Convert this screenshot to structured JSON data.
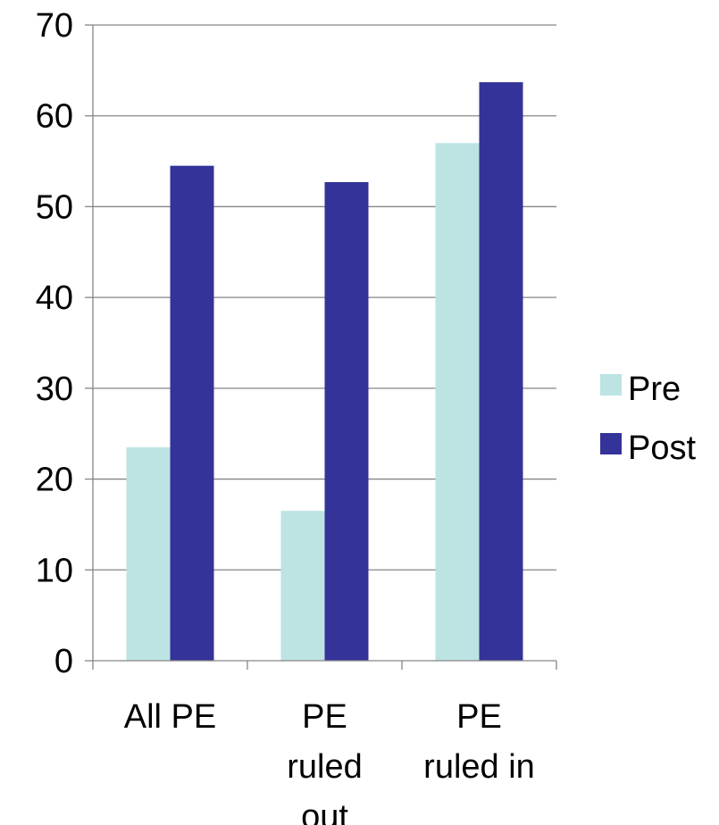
{
  "chart_data": {
    "type": "bar",
    "categories": [
      [
        "All PE"
      ],
      [
        "PE",
        "ruled",
        "out"
      ],
      [
        "PE",
        "ruled in"
      ]
    ],
    "series": [
      {
        "name": "Pre",
        "values": [
          23.5,
          16.5,
          57.0
        ],
        "color": "#bde3e3"
      },
      {
        "name": "Post",
        "values": [
          54.5,
          52.7,
          63.7
        ],
        "color": "#333399"
      }
    ],
    "ylim": [
      0,
      70
    ],
    "yticks": [
      0,
      10,
      20,
      30,
      40,
      50,
      60,
      70
    ],
    "title": "",
    "xlabel": "",
    "ylabel": "",
    "grid": true,
    "legend_position": "right",
    "axis_color": "#868686",
    "grid_color": "#868686"
  }
}
